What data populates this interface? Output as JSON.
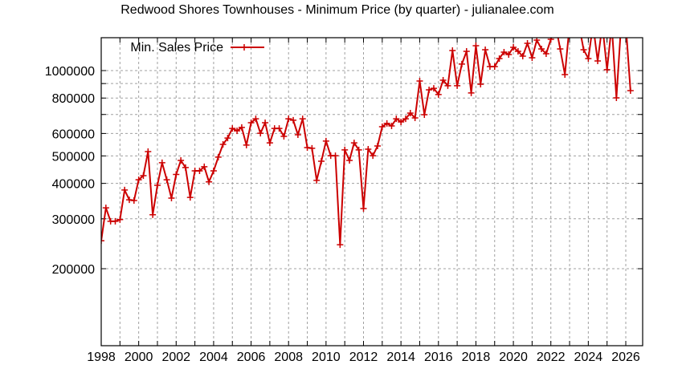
{
  "chart_data": {
    "type": "line",
    "title": "Redwood Shores Townhouses - Minimum Price (by quarter) - julianalee.com",
    "xlabel": "",
    "ylabel": "",
    "yscale": "log",
    "xlim": [
      1998,
      2027
    ],
    "ylim": [
      107000,
      1300000
    ],
    "grid": true,
    "legend_position": "top-left (inside)",
    "x_ticks": [
      "1998",
      "2000",
      "2002",
      "2004",
      "2006",
      "2008",
      "2010",
      "2012",
      "2014",
      "2016",
      "2018",
      "2020",
      "2022",
      "2024",
      "2026"
    ],
    "y_ticks": [
      {
        "value": 200000,
        "label": "200000"
      },
      {
        "value": 300000,
        "label": "300000"
      },
      {
        "value": 400000,
        "label": "400000"
      },
      {
        "value": 500000,
        "label": "500000"
      },
      {
        "value": 600000,
        "label": "600000"
      },
      {
        "value": 800000,
        "label": "800000"
      },
      {
        "value": 1000000,
        "label": "1000000"
      }
    ],
    "y_minor_grid": [
      700000,
      900000
    ],
    "series": [
      {
        "name": "Min. Sales Price",
        "color": "#cc0000",
        "x_start": 1998.0,
        "x_step": 0.25,
        "values": [
          251000,
          328000,
          294000,
          294000,
          298000,
          379000,
          350000,
          348000,
          412000,
          426000,
          518000,
          310000,
          394000,
          473000,
          412000,
          355000,
          430000,
          482000,
          455000,
          357000,
          443000,
          443000,
          458000,
          405000,
          443000,
          495000,
          549000,
          578000,
          625000,
          613000,
          630000,
          546000,
          655000,
          676000,
          601000,
          655000,
          556000,
          625000,
          625000,
          586000,
          676000,
          668000,
          594000,
          676000,
          535000,
          532000,
          410000,
          479000,
          564000,
          501000,
          501000,
          243000,
          525000,
          482000,
          556000,
          525000,
          326000,
          528000,
          501000,
          542000,
          634000,
          651000,
          638000,
          676000,
          659000,
          676000,
          708000,
          681000,
          919000,
          699000,
          855000,
          866000,
          823000,
          925000,
          884000,
          1177000,
          884000,
          1054000,
          1169000,
          834000,
          1224000,
          895000,
          1185000,
          1033000,
          1033000,
          1103000,
          1162000,
          1139000,
          1208000,
          1169000,
          1124000,
          1248000,
          1110000,
          1281000,
          1192000,
          1147000,
          1289000,
          1450000,
          1192000,
          968000,
          1450000,
          1450000,
          1450000,
          1185000,
          1103000,
          1450000,
          1081000,
          1450000,
          1007000,
          1450000,
          801000,
          1450000,
          1450000,
          850000
        ]
      }
    ]
  },
  "legend": {
    "label": "Min. Sales Price"
  }
}
